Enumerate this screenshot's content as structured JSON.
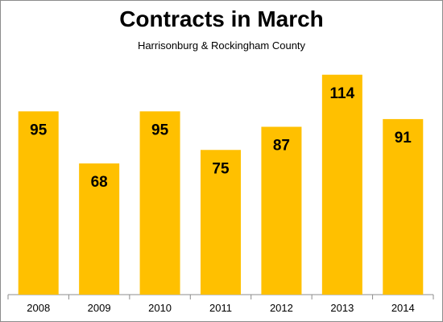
{
  "chart_data": {
    "type": "bar",
    "title": "Contracts in March",
    "subtitle": "Harrisonburg  &  Rockingham  County",
    "categories": [
      "2008",
      "2009",
      "2010",
      "2011",
      "2012",
      "2013",
      "2014"
    ],
    "values": [
      95,
      68,
      95,
      75,
      87,
      114,
      91
    ],
    "ylim": [
      0,
      116
    ],
    "grid": false,
    "legend": "none",
    "bar_color": "#FFC000",
    "data_labels": true
  }
}
